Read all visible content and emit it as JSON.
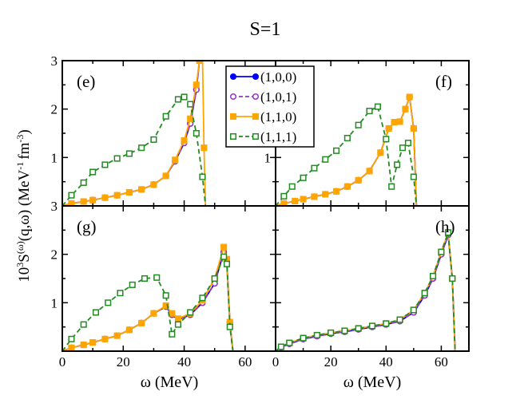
{
  "figure": {
    "title": "S=1",
    "ylabel_prefix": "10",
    "ylabel_sup": "3",
    "ylabel_main": "S",
    "ylabel_sup2": "(ω)",
    "ylabel_args": "(q,ω) (MeV",
    "ylabel_sup3": "-1",
    "ylabel_mid": "fm",
    "ylabel_sup4": "-3",
    "ylabel_end": ")",
    "xlabel_left": "ω (MeV)",
    "xlabel_right": "ω (MeV)"
  },
  "legend": [
    {
      "label": "(1,0,0)",
      "color": "#0000ff",
      "marker": "circle-filled",
      "dash": false
    },
    {
      "label": "(1,0,1)",
      "color": "#9933cc",
      "marker": "circle-open",
      "dash": true
    },
    {
      "label": "(1,1,0)",
      "color": "#ffa500",
      "marker": "square-filled",
      "dash": false
    },
    {
      "label": "(1,1,1)",
      "color": "#228b22",
      "marker": "square-open",
      "dash": true
    }
  ],
  "chart_data": [
    {
      "type": "line",
      "panel": "(e)",
      "xlim": [
        0,
        70
      ],
      "ylim": [
        0,
        3
      ],
      "xticks": [],
      "yticks": [
        "1",
        "2",
        "3"
      ],
      "series": [
        {
          "name": "(1,0,0)",
          "x": [
            0,
            3,
            7,
            10,
            14,
            18,
            22,
            26,
            30,
            34,
            37,
            40,
            42,
            44,
            45,
            46
          ],
          "y": [
            0,
            0.05,
            0.09,
            0.12,
            0.17,
            0.22,
            0.28,
            0.34,
            0.44,
            0.62,
            0.92,
            1.3,
            1.7,
            2.4,
            3.0,
            3.1
          ]
        },
        {
          "name": "(1,0,1)",
          "x": [
            0,
            3,
            7,
            10,
            14,
            18,
            22,
            26,
            30,
            34,
            37,
            40,
            42,
            44,
            45,
            46
          ],
          "y": [
            0,
            0.05,
            0.09,
            0.12,
            0.17,
            0.22,
            0.28,
            0.34,
            0.44,
            0.62,
            0.92,
            1.3,
            1.7,
            2.4,
            3.0,
            3.1
          ]
        },
        {
          "name": "(1,1,0)",
          "x": [
            0,
            3,
            7,
            10,
            14,
            18,
            22,
            26,
            30,
            34,
            37,
            40,
            42,
            44,
            45,
            46,
            46.5,
            47
          ],
          "y": [
            0,
            0.05,
            0.09,
            0.12,
            0.17,
            0.22,
            0.28,
            0.34,
            0.44,
            0.62,
            0.95,
            1.35,
            1.8,
            2.5,
            3.0,
            3.1,
            1.2,
            0
          ]
        },
        {
          "name": "(1,1,1)",
          "x": [
            0,
            3,
            7,
            10,
            14,
            18,
            22,
            26,
            30,
            34,
            38,
            40,
            42,
            44,
            46,
            47
          ],
          "y": [
            0,
            0.22,
            0.48,
            0.7,
            0.85,
            0.98,
            1.08,
            1.2,
            1.37,
            1.85,
            2.2,
            2.25,
            2.1,
            1.5,
            0.6,
            0
          ]
        }
      ]
    },
    {
      "type": "line",
      "panel": "(f)",
      "xlim": [
        0,
        70
      ],
      "ylim": [
        0,
        3
      ],
      "xticks": [],
      "yticks": [
        "1",
        "2"
      ],
      "series": [
        {
          "name": "(1,0,0)",
          "x": [
            0,
            3,
            7,
            10,
            14,
            18,
            22,
            26,
            30,
            34,
            38,
            41,
            43,
            45,
            47,
            48.5,
            50,
            51
          ],
          "y": [
            0,
            0.05,
            0.1,
            0.14,
            0.19,
            0.24,
            0.3,
            0.4,
            0.53,
            0.72,
            1.1,
            1.6,
            1.73,
            1.74,
            2.0,
            2.25,
            1.6,
            0
          ]
        },
        {
          "name": "(1,0,1)",
          "x": [
            0,
            3,
            7,
            10,
            14,
            18,
            22,
            26,
            30,
            34,
            38,
            41,
            43,
            45,
            47,
            48.5,
            50,
            51
          ],
          "y": [
            0,
            0.05,
            0.1,
            0.14,
            0.19,
            0.24,
            0.3,
            0.4,
            0.53,
            0.72,
            1.1,
            1.6,
            1.73,
            1.74,
            2.0,
            2.25,
            1.6,
            0
          ]
        },
        {
          "name": "(1,1,0)",
          "x": [
            0,
            3,
            7,
            10,
            14,
            18,
            22,
            26,
            30,
            34,
            38,
            41,
            43,
            45,
            47,
            48.5,
            50,
            51
          ],
          "y": [
            0,
            0.05,
            0.1,
            0.14,
            0.19,
            0.24,
            0.3,
            0.4,
            0.53,
            0.72,
            1.1,
            1.6,
            1.73,
            1.74,
            2.0,
            2.25,
            1.6,
            0
          ]
        },
        {
          "name": "(1,1,1)",
          "x": [
            0,
            3,
            6,
            10,
            14,
            18,
            22,
            26,
            30,
            34,
            37,
            40,
            42,
            44,
            46,
            48,
            50,
            51
          ],
          "y": [
            0,
            0.2,
            0.4,
            0.58,
            0.78,
            0.96,
            1.14,
            1.4,
            1.67,
            1.96,
            2.05,
            1.38,
            0.4,
            0.85,
            1.2,
            1.3,
            0.6,
            0
          ]
        }
      ]
    },
    {
      "type": "line",
      "panel": "(g)",
      "xlim": [
        0,
        70
      ],
      "ylim": [
        0,
        3
      ],
      "xticks": [
        "0",
        "20",
        "40",
        "60"
      ],
      "yticks": [
        "1",
        "2",
        "3"
      ],
      "series": [
        {
          "name": "(1,0,0)",
          "x": [
            0,
            3,
            7,
            10,
            14,
            18,
            22,
            26,
            30,
            34,
            36,
            38,
            42,
            46,
            50,
            53,
            54,
            55,
            56
          ],
          "y": [
            0,
            0.07,
            0.13,
            0.18,
            0.25,
            0.32,
            0.44,
            0.58,
            0.78,
            0.92,
            0.75,
            0.65,
            0.75,
            1.0,
            1.4,
            2.05,
            1.85,
            0.6,
            0
          ]
        },
        {
          "name": "(1,0,1)",
          "x": [
            0,
            3,
            7,
            10,
            14,
            18,
            22,
            26,
            30,
            34,
            36,
            38,
            42,
            46,
            50,
            53,
            54,
            55,
            56
          ],
          "y": [
            0,
            0.07,
            0.13,
            0.18,
            0.25,
            0.32,
            0.44,
            0.58,
            0.78,
            0.92,
            0.75,
            0.65,
            0.75,
            1.0,
            1.4,
            2.05,
            1.85,
            0.6,
            0
          ]
        },
        {
          "name": "(1,1,0)",
          "x": [
            0,
            3,
            7,
            10,
            14,
            18,
            22,
            26,
            30,
            34,
            36,
            38,
            42,
            46,
            50,
            53,
            54,
            55,
            56
          ],
          "y": [
            0,
            0.07,
            0.13,
            0.18,
            0.25,
            0.32,
            0.44,
            0.58,
            0.78,
            0.94,
            0.78,
            0.67,
            0.78,
            1.05,
            1.5,
            2.15,
            1.9,
            0.6,
            0
          ]
        },
        {
          "name": "(1,1,1)",
          "x": [
            0,
            3,
            7,
            11,
            15,
            19,
            23,
            27,
            31,
            34,
            36,
            38,
            42,
            46,
            50,
            53,
            54,
            55,
            56
          ],
          "y": [
            0,
            0.25,
            0.55,
            0.8,
            1.0,
            1.2,
            1.37,
            1.5,
            1.52,
            1.15,
            0.35,
            0.55,
            0.8,
            1.1,
            1.5,
            1.95,
            1.8,
            0.5,
            0
          ]
        }
      ]
    },
    {
      "type": "line",
      "panel": "(h)",
      "xlim": [
        0,
        70
      ],
      "ylim": [
        0,
        3
      ],
      "xticks": [
        "0",
        "20",
        "40",
        "60"
      ],
      "yticks": [],
      "series": [
        {
          "name": "(1,0,0)",
          "x": [
            0,
            2,
            5,
            10,
            15,
            20,
            25,
            30,
            35,
            40,
            45,
            50,
            54,
            57,
            60,
            62.5,
            64,
            65
          ],
          "y": [
            0,
            0.08,
            0.15,
            0.25,
            0.31,
            0.36,
            0.4,
            0.45,
            0.5,
            0.55,
            0.62,
            0.8,
            1.15,
            1.5,
            2.0,
            2.4,
            1.5,
            0
          ]
        },
        {
          "name": "(1,0,1)",
          "x": [
            0,
            2,
            5,
            10,
            15,
            20,
            25,
            30,
            35,
            40,
            45,
            50,
            54,
            57,
            60,
            62.5,
            64,
            65
          ],
          "y": [
            0,
            0.08,
            0.15,
            0.25,
            0.31,
            0.36,
            0.4,
            0.45,
            0.5,
            0.55,
            0.62,
            0.8,
            1.15,
            1.5,
            2.0,
            2.4,
            1.5,
            0
          ]
        },
        {
          "name": "(1,1,0)",
          "x": [
            0,
            2,
            5,
            10,
            15,
            20,
            25,
            30,
            35,
            40,
            45,
            50,
            54,
            57,
            60,
            62.5,
            64,
            65
          ],
          "y": [
            0,
            0.09,
            0.17,
            0.27,
            0.33,
            0.38,
            0.42,
            0.47,
            0.52,
            0.57,
            0.65,
            0.85,
            1.2,
            1.55,
            2.05,
            2.45,
            1.5,
            0
          ]
        },
        {
          "name": "(1,1,1)",
          "x": [
            0,
            2,
            5,
            10,
            15,
            20,
            25,
            30,
            35,
            40,
            45,
            50,
            54,
            57,
            60,
            62.5,
            64,
            65
          ],
          "y": [
            0,
            0.09,
            0.17,
            0.27,
            0.33,
            0.38,
            0.42,
            0.47,
            0.52,
            0.57,
            0.65,
            0.85,
            1.2,
            1.55,
            2.05,
            2.45,
            1.5,
            0
          ]
        }
      ]
    }
  ]
}
